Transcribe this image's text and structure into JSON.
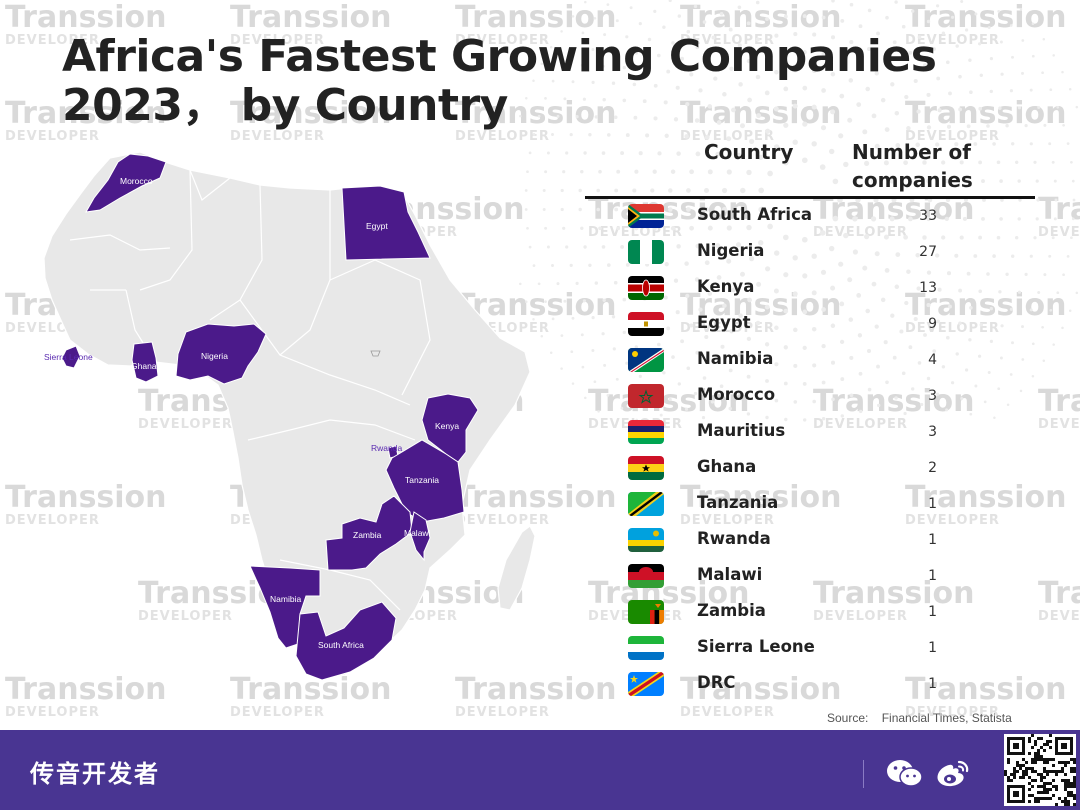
{
  "title": "Africa's Fastest Growing Companies 2023， by Country",
  "watermark": {
    "line1": "Transsion",
    "line2": "DEVELOPER"
  },
  "colors": {
    "highlight": "#4b1a8a",
    "land": "#e8e8e8",
    "footer": "#493592"
  },
  "chart_data": {
    "type": "table",
    "columns": [
      "Country",
      "Number of companies"
    ],
    "rows": [
      {
        "country": "South Africa",
        "value": 33,
        "flag": "south-africa-flag-icon"
      },
      {
        "country": "Nigeria",
        "value": 27,
        "flag": "nigeria-flag-icon"
      },
      {
        "country": "Kenya",
        "value": 13,
        "flag": "kenya-flag-icon"
      },
      {
        "country": "Egypt",
        "value": 9,
        "flag": "egypt-flag-icon"
      },
      {
        "country": "Namibia",
        "value": 4,
        "flag": "namibia-flag-icon"
      },
      {
        "country": "Morocco",
        "value": 3,
        "flag": "morocco-flag-icon"
      },
      {
        "country": "Mauritius",
        "value": 3,
        "flag": "mauritius-flag-icon"
      },
      {
        "country": "Ghana",
        "value": 2,
        "flag": "ghana-flag-icon"
      },
      {
        "country": "Tanzania",
        "value": 1,
        "flag": "tanzania-flag-icon"
      },
      {
        "country": "Rwanda",
        "value": 1,
        "flag": "rwanda-flag-icon"
      },
      {
        "country": "Malawi",
        "value": 1,
        "flag": "malawi-flag-icon"
      },
      {
        "country": "Zambia",
        "value": 1,
        "flag": "zambia-flag-icon"
      },
      {
        "country": "Sierra Leone",
        "value": 1,
        "flag": "sierra-leone-flag-icon"
      },
      {
        "country": "DRC",
        "value": 1,
        "flag": "drc-flag-icon"
      }
    ],
    "map_labels": [
      "Morocco",
      "Egypt",
      "Sierra Leone",
      "Ghana",
      "Nigeria",
      "Kenya",
      "Rwanda",
      "Tanzania",
      "Zambia",
      "Malawi",
      "Namibia",
      "South Africa"
    ]
  },
  "source": {
    "label": "Source:",
    "text": "Financial Times, Statista"
  },
  "footer": {
    "brand": "传音开发者",
    "icons": [
      "wechat-icon",
      "weibo-icon",
      "qr-code-icon"
    ]
  }
}
